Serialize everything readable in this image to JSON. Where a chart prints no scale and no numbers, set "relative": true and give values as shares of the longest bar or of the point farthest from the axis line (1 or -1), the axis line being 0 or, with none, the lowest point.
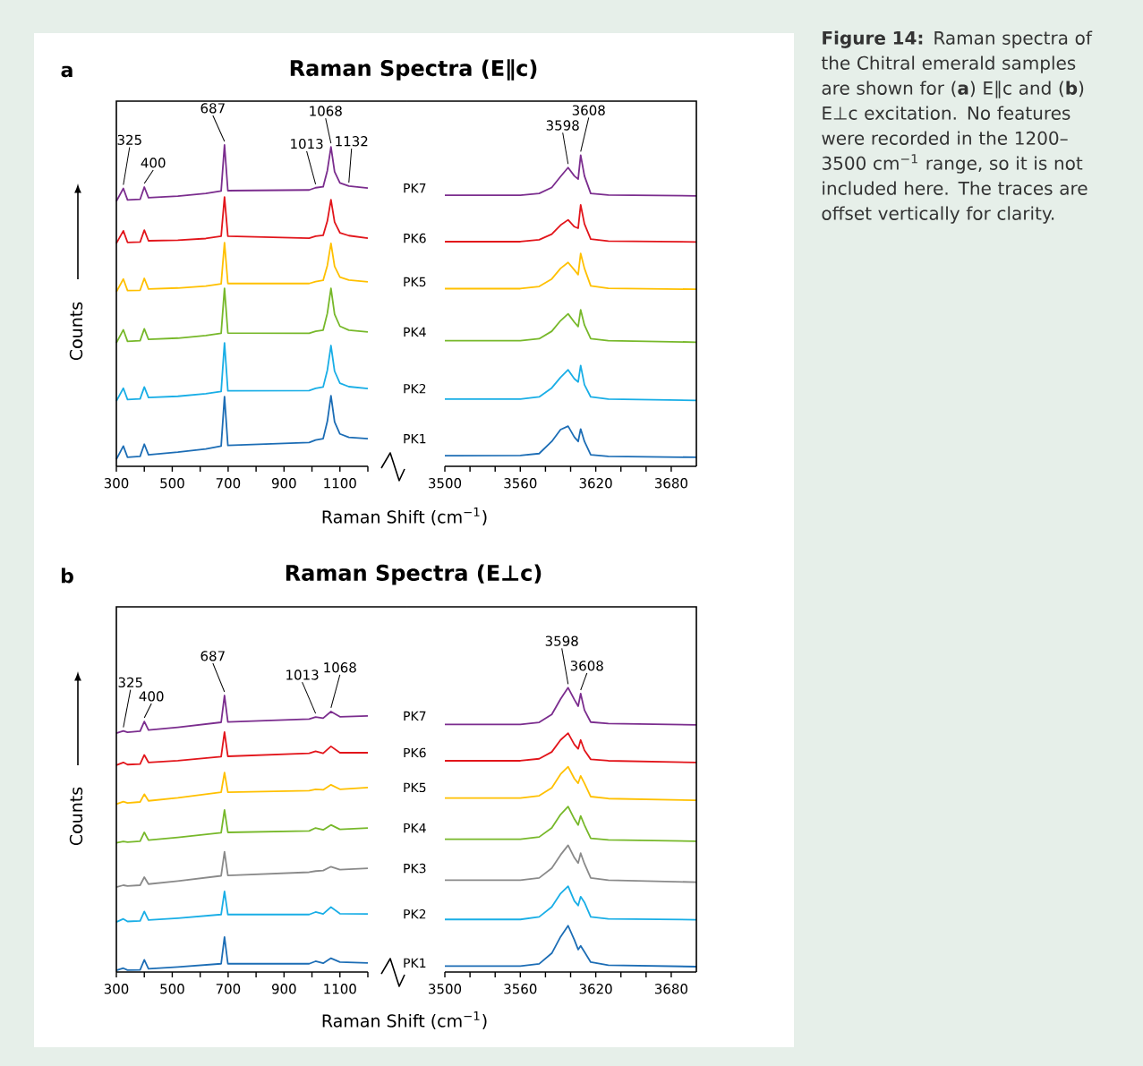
{
  "chart_data": [
    {
      "type": "line",
      "title": "Raman Spectra (E∥c)",
      "xlabel": "Raman Shift (cm$^{−1}$)",
      "ylabel": "Counts",
      "relative": true,
      "annotations": [
        "a",
        {
          "text": "325",
          "x": 325,
          "y": 0.865
        },
        {
          "text": "400",
          "x": 400,
          "y": 0.869
        },
        {
          "text": "687",
          "x": 687,
          "y": 1
        },
        {
          "text": "1013",
          "x": 1013,
          "y": 0.867
        },
        {
          "text": "1068",
          "x": 1068,
          "y": 0.994
        },
        {
          "text": "1132",
          "x": 1132,
          "y": 0.872
        }
      ],
      "xlim": [
        300,
        1200
      ],
      "xticks": [
        300,
        {
          "value": 400,
          "label": null
        },
        500,
        {
          "value": 600,
          "label": null
        },
        700,
        {
          "value": 800,
          "label": null
        },
        900,
        {
          "value": 1000,
          "label": null
        },
        1100,
        {
          "value": 1200,
          "label": null
        }
      ],
      "x": [
        300,
        325,
        340,
        385,
        400,
        415,
        520,
        620,
        675,
        687,
        699,
        990,
        1013,
        1040,
        1055,
        1068,
        1081,
        1100,
        1132,
        1200
      ],
      "series": [
        {
          "name": "PK7",
          "color": "#7b2d8e",
          "values": [
            0.825,
            0.865,
            0.829,
            0.831,
            0.869,
            0.836,
            0.841,
            0.849,
            0.857,
            1,
            0.858,
            0.86,
            0.867,
            0.87,
            0.92,
            0.994,
            0.917,
            0.882,
            0.872,
            0.866
          ]
        },
        {
          "name": "PK6",
          "color": "#e2151b",
          "values": [
            0.694,
            0.733,
            0.697,
            0.698,
            0.735,
            0.702,
            0.704,
            0.709,
            0.716,
            0.838,
            0.716,
            0.71,
            0.716,
            0.719,
            0.763,
            0.83,
            0.76,
            0.727,
            0.718,
            0.71
          ]
        },
        {
          "name": "PK5",
          "color": "#ffc000",
          "values": [
            0.543,
            0.583,
            0.547,
            0.548,
            0.585,
            0.552,
            0.555,
            0.561,
            0.568,
            0.696,
            0.569,
            0.569,
            0.575,
            0.579,
            0.625,
            0.694,
            0.622,
            0.589,
            0.58,
            0.574
          ]
        },
        {
          "name": "PK4",
          "color": "#77b82a",
          "values": [
            0.384,
            0.425,
            0.389,
            0.391,
            0.428,
            0.395,
            0.399,
            0.407,
            0.414,
            0.554,
            0.415,
            0.414,
            0.42,
            0.424,
            0.476,
            0.554,
            0.473,
            0.436,
            0.424,
            0.418
          ]
        },
        {
          "name": "PK2",
          "color": "#19aee6",
          "values": [
            0.203,
            0.243,
            0.208,
            0.21,
            0.247,
            0.214,
            0.218,
            0.226,
            0.233,
            0.384,
            0.235,
            0.236,
            0.243,
            0.247,
            0.299,
            0.376,
            0.296,
            0.259,
            0.248,
            0.242
          ]
        },
        {
          "name": "PK1",
          "color": "#1c6db5",
          "values": [
            0.022,
            0.063,
            0.028,
            0.031,
            0.069,
            0.036,
            0.044,
            0.054,
            0.063,
            0.217,
            0.065,
            0.074,
            0.082,
            0.086,
            0.14,
            0.22,
            0.138,
            0.101,
            0.09,
            0.086
          ]
        }
      ]
    },
    {
      "type": "line",
      "relative": true,
      "annotations": [
        {
          "text": "3598",
          "x": 3598,
          "y": 0.96
        },
        {
          "text": "3608",
          "x": 3608,
          "y": 1
        }
      ],
      "xlim": [
        3500,
        3700
      ],
      "xticks": [
        3500,
        {
          "value": 3520,
          "label": null
        },
        {
          "value": 3540,
          "label": null
        },
        3560,
        {
          "value": 3580,
          "label": null
        },
        {
          "value": 3600,
          "label": null
        },
        3620,
        {
          "value": 3640,
          "label": null
        },
        {
          "value": 3660,
          "label": null
        },
        3680
      ],
      "x": [
        3500,
        3560,
        3575,
        3585,
        3592,
        3598,
        3603,
        3606,
        3608,
        3611,
        3616,
        3630,
        3700
      ],
      "series": [
        {
          "color": "#7b2d8e",
          "values": [
            0.871,
            0.871,
            0.877,
            0.896,
            0.931,
            0.96,
            0.933,
            0.923,
            1,
            0.933,
            0.877,
            0.872,
            0.869
          ]
        },
        {
          "color": "#e2151b",
          "values": [
            0.722,
            0.722,
            0.728,
            0.746,
            0.775,
            0.792,
            0.77,
            0.765,
            0.84,
            0.779,
            0.73,
            0.724,
            0.721
          ]
        },
        {
          "color": "#ffc000",
          "values": [
            0.571,
            0.571,
            0.578,
            0.602,
            0.636,
            0.655,
            0.631,
            0.616,
            0.684,
            0.636,
            0.58,
            0.572,
            0.569
          ]
        },
        {
          "color": "#77b82a",
          "values": [
            0.404,
            0.404,
            0.41,
            0.434,
            0.468,
            0.49,
            0.463,
            0.449,
            0.503,
            0.454,
            0.41,
            0.404,
            0.399
          ]
        },
        {
          "color": "#19aee6",
          "values": [
            0.216,
            0.216,
            0.223,
            0.252,
            0.286,
            0.31,
            0.281,
            0.271,
            0.324,
            0.262,
            0.223,
            0.216,
            0.212
          ]
        },
        {
          "color": "#1c6db5",
          "values": [
            0.034,
            0.035,
            0.041,
            0.08,
            0.118,
            0.129,
            0.094,
            0.08,
            0.12,
            0.08,
            0.037,
            0.032,
            0.029
          ]
        }
      ]
    },
    {
      "type": "line",
      "title": "Raman Spectra (E⊥c)",
      "xlabel": "Raman Shift (cm$^{−1}$)",
      "ylabel": "Counts",
      "relative": true,
      "annotations": [
        "b",
        {
          "text": "325",
          "x": 325,
          "y": 0.872
        },
        {
          "text": "400",
          "x": 400,
          "y": 0.906
        },
        {
          "text": "687",
          "x": 687,
          "y": 1
        },
        {
          "text": "1013",
          "x": 1013,
          "y": 0.922
        },
        {
          "text": "1068",
          "x": 1068,
          "y": 0.942
        }
      ],
      "xlim": [
        300,
        1200
      ],
      "xticks": [
        300,
        {
          "value": 400,
          "label": null
        },
        500,
        {
          "value": 600,
          "label": null
        },
        700,
        {
          "value": 800,
          "label": null
        },
        900,
        {
          "value": 1000,
          "label": null
        },
        1100,
        {
          "value": 1200,
          "label": null
        }
      ],
      "x": [
        300,
        325,
        340,
        385,
        400,
        415,
        520,
        675,
        687,
        699,
        990,
        1013,
        1040,
        1068,
        1100,
        1200
      ],
      "series": [
        {
          "name": "PK7",
          "color": "#7b2d8e",
          "values": [
            0.864,
            0.872,
            0.867,
            0.871,
            0.906,
            0.875,
            0.885,
            0.903,
            1,
            0.904,
            0.915,
            0.922,
            0.918,
            0.942,
            0.923,
            0.926
          ]
        },
        {
          "name": "PK6",
          "color": "#e2151b",
          "values": [
            0.748,
            0.758,
            0.75,
            0.752,
            0.785,
            0.758,
            0.764,
            0.779,
            0.868,
            0.78,
            0.791,
            0.798,
            0.791,
            0.816,
            0.793,
            0.793
          ]
        },
        {
          "name": "PK5",
          "color": "#ffc000",
          "values": [
            0.607,
            0.616,
            0.611,
            0.615,
            0.643,
            0.619,
            0.63,
            0.65,
            0.721,
            0.65,
            0.656,
            0.661,
            0.659,
            0.677,
            0.661,
            0.667
          ]
        },
        {
          "name": "PK4",
          "color": "#77b82a",
          "values": [
            0.467,
            0.472,
            0.47,
            0.473,
            0.505,
            0.477,
            0.487,
            0.504,
            0.586,
            0.505,
            0.51,
            0.521,
            0.514,
            0.532,
            0.516,
            0.521
          ]
        },
        {
          "name": "PK3",
          "color": "#8a8a8a",
          "values": [
            0.307,
            0.314,
            0.311,
            0.314,
            0.343,
            0.318,
            0.329,
            0.348,
            0.435,
            0.349,
            0.361,
            0.365,
            0.367,
            0.381,
            0.37,
            0.375
          ]
        },
        {
          "name": "PK2",
          "color": "#19aee6",
          "values": [
            0.181,
            0.192,
            0.183,
            0.185,
            0.219,
            0.188,
            0.195,
            0.208,
            0.292,
            0.208,
            0.208,
            0.217,
            0.21,
            0.235,
            0.211,
            0.21
          ]
        },
        {
          "name": "PK1",
          "color": "#1c6db5",
          "values": [
            0.006,
            0.014,
            0.007,
            0.008,
            0.044,
            0.012,
            0.018,
            0.03,
            0.127,
            0.03,
            0.03,
            0.039,
            0.032,
            0.05,
            0.036,
            0.033
          ]
        }
      ]
    },
    {
      "type": "line",
      "relative": true,
      "annotations": [
        {
          "text": "3598",
          "x": 3598,
          "y": 1
        },
        {
          "text": "3608",
          "x": 3608,
          "y": 0.979
        }
      ],
      "xlim": [
        3500,
        3700
      ],
      "xticks": [
        3500,
        {
          "value": 3520,
          "label": null
        },
        {
          "value": 3540,
          "label": null
        },
        3560,
        {
          "value": 3580,
          "label": null
        },
        {
          "value": 3600,
          "label": null
        },
        3620,
        {
          "value": 3640,
          "label": null
        },
        {
          "value": 3660,
          "label": null
        },
        3680
      ],
      "x": [
        3500,
        3560,
        3575,
        3585,
        3592,
        3598,
        3603,
        3606,
        3608,
        3611,
        3616,
        3630,
        3700
      ],
      "series": [
        {
          "color": "#7b2d8e",
          "values": [
            0.871,
            0.871,
            0.878,
            0.906,
            0.96,
            1,
            0.958,
            0.935,
            0.979,
            0.921,
            0.879,
            0.874,
            0.869
          ]
        },
        {
          "color": "#e2151b",
          "values": [
            0.743,
            0.743,
            0.75,
            0.774,
            0.816,
            0.84,
            0.8,
            0.785,
            0.816,
            0.78,
            0.748,
            0.743,
            0.737
          ]
        },
        {
          "color": "#ffc000",
          "values": [
            0.612,
            0.612,
            0.62,
            0.648,
            0.696,
            0.722,
            0.68,
            0.664,
            0.69,
            0.664,
            0.617,
            0.61,
            0.604
          ]
        },
        {
          "color": "#77b82a",
          "values": [
            0.467,
            0.467,
            0.475,
            0.507,
            0.554,
            0.582,
            0.538,
            0.517,
            0.549,
            0.517,
            0.47,
            0.465,
            0.46
          ]
        },
        {
          "color": "#8a8a8a",
          "values": [
            0.323,
            0.323,
            0.331,
            0.365,
            0.412,
            0.446,
            0.402,
            0.383,
            0.418,
            0.381,
            0.331,
            0.323,
            0.316
          ]
        },
        {
          "color": "#19aee6",
          "values": [
            0.185,
            0.185,
            0.194,
            0.229,
            0.276,
            0.302,
            0.25,
            0.234,
            0.265,
            0.245,
            0.194,
            0.187,
            0.184
          ]
        },
        {
          "color": "#1c6db5",
          "values": [
            0.021,
            0.021,
            0.029,
            0.066,
            0.124,
            0.163,
            0.113,
            0.079,
            0.092,
            0.071,
            0.035,
            0.024,
            0.019
          ]
        }
      ]
    },
    {
      "type": "other",
      "annotations": [
        "**Figure 14:** Raman spectra of the Chitral emerald samples are shown for (**a**) E∥c and (**b**) E⊥c excitation. No features were recorded in the 1200–3500 cm$^{−1}$ range, so it is not included here. The traces are offset vertically for clarity."
      ]
    }
  ]
}
